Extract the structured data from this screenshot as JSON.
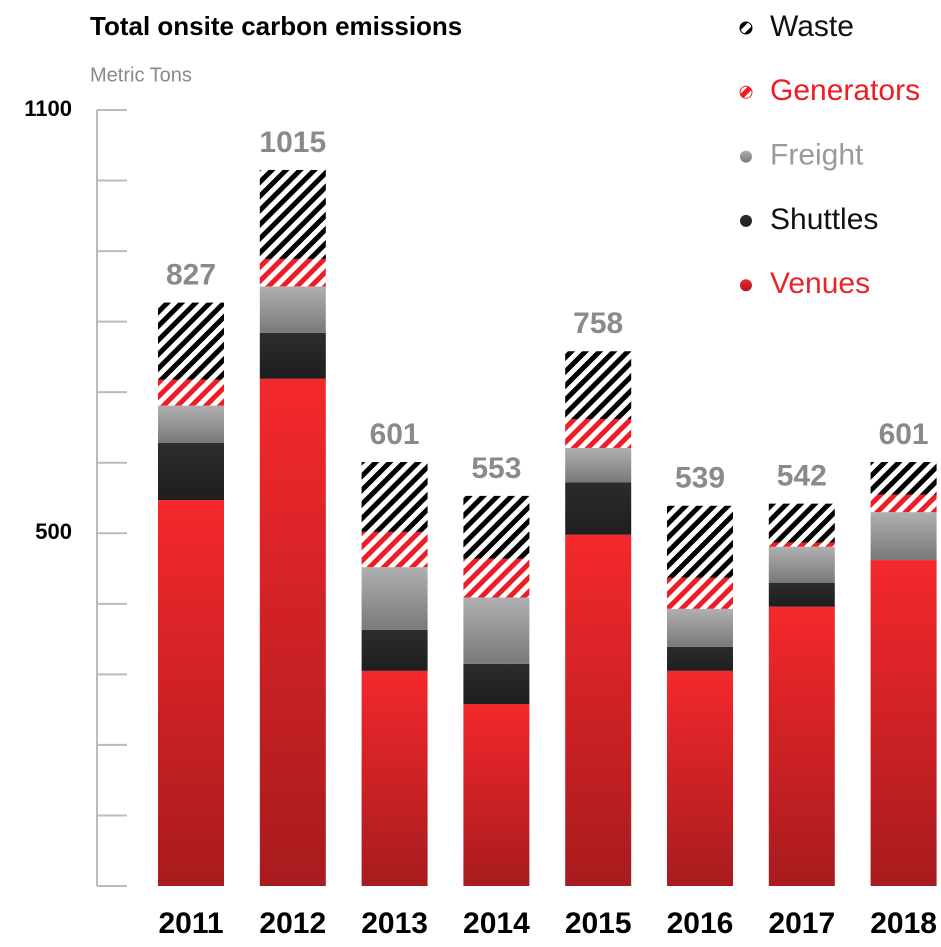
{
  "chart_data": {
    "type": "stacked_bar",
    "title": "Total onsite carbon emissions",
    "y_label": "Metric Tons",
    "categories": [
      "2011",
      "2012",
      "2013",
      "2014",
      "2015",
      "2016",
      "2017",
      "2018"
    ],
    "series": [
      {
        "name": "Venues",
        "color": "#e8262a",
        "legend_text_color": "#e8262a",
        "fill_style": "gradient",
        "values": [
          547,
          719,
          305,
          258,
          498,
          305,
          396,
          462
        ]
      },
      {
        "name": "Shuttles",
        "color": "#2a2a2a",
        "legend_text_color": "#111111",
        "fill_style": "gradient",
        "values": [
          81,
          65,
          58,
          57,
          74,
          34,
          34,
          0
        ]
      },
      {
        "name": "Freight",
        "color": "#a8a8a8",
        "legend_text_color": "#9a9a9a",
        "fill_style": "gradient",
        "values": [
          53,
          66,
          89,
          94,
          49,
          54,
          51,
          68
        ]
      },
      {
        "name": "Generators",
        "color": "#ee1c25",
        "legend_text_color": "#ee1c25",
        "fill_style": "stripes",
        "values": [
          37,
          39,
          50,
          55,
          41,
          44,
          6,
          25
        ]
      },
      {
        "name": "Waste",
        "color": "#000000",
        "legend_text_color": "#111111",
        "fill_style": "stripes",
        "values": [
          109,
          126,
          99,
          89,
          96,
          102,
          55,
          46
        ]
      }
    ],
    "totals": [
      827,
      1015,
      601,
      553,
      758,
      539,
      542,
      601
    ],
    "ylim": [
      0,
      1100
    ],
    "yticks": [
      500,
      1100
    ],
    "minor_yticks": [
      0,
      100,
      200,
      300,
      400,
      600,
      700,
      800,
      900,
      1000
    ],
    "legend": "top-right"
  }
}
